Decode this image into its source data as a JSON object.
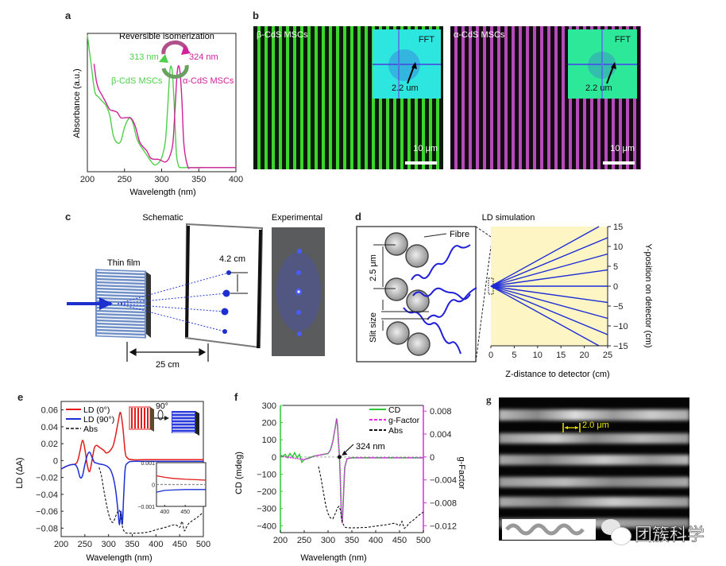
{
  "panels": {
    "a": {
      "label": "a",
      "title": "Reversible isomerization",
      "wl_green": "313 nm",
      "wl_magenta": "324 nm",
      "beta_label": "β-CdS MSCs",
      "alpha_label": "α-CdS MSCs",
      "colors": {
        "beta": "#4fd04a",
        "alpha": "#d0219b"
      }
    },
    "b": {
      "label": "b",
      "left_title": "β-CdS MSCs",
      "right_title": "α-CdS MSCs",
      "fft_label": "FFT",
      "fft_spacing": "2.2 um",
      "scale_bar": "10 μm",
      "colors": {
        "green_stripe": "#37d42c",
        "magenta_stripe": "#b54bb8",
        "fft_bg_left": "#2ee6e0",
        "fft_bg_right": "#2ee89a"
      }
    },
    "c": {
      "label": "c",
      "schematic_title": "Schematic",
      "experimental_title": "Experimental",
      "thin_film": "Thin film",
      "spot_spacing": "4.2 cm",
      "distance": "25 cm"
    },
    "d": {
      "label": "d",
      "title": "LD simulation",
      "fibre_label": "Fibre",
      "period_label": "2.5 μm",
      "slit_label": "Slit size"
    },
    "e": {
      "label": "e"
    },
    "f": {
      "label": "f",
      "annotation": "324 nm"
    },
    "g": {
      "label": "g",
      "scale_label": "2.0 μm"
    }
  },
  "watermark": "团簇科学",
  "chart_data": [
    {
      "id": "a",
      "type": "line",
      "title": "",
      "xlabel": "Wavelength (nm)",
      "ylabel": "Absorbance (a.u.)",
      "xlim": [
        200,
        400
      ],
      "ylim": [
        0,
        1
      ],
      "xticks": [
        200,
        250,
        300,
        350,
        400
      ],
      "series": [
        {
          "name": "β-CdS MSCs",
          "color": "#4fd04a",
          "x": [
            200,
            205,
            210,
            215,
            220,
            225,
            230,
            235,
            240,
            245,
            250,
            255,
            258,
            262,
            266,
            270,
            275,
            280,
            285,
            290,
            295,
            300,
            305,
            308,
            311,
            313,
            315,
            318,
            320,
            323,
            326,
            330,
            340,
            360,
            380,
            400
          ],
          "y": [
            0.99,
            0.78,
            0.58,
            0.54,
            0.51,
            0.48,
            0.41,
            0.26,
            0.21,
            0.22,
            0.32,
            0.38,
            0.39,
            0.34,
            0.25,
            0.2,
            0.16,
            0.12,
            0.08,
            0.05,
            0.06,
            0.1,
            0.22,
            0.45,
            0.72,
            0.76,
            0.68,
            0.35,
            0.12,
            0.04,
            0.03,
            0.03,
            0.03,
            0.03,
            0.03,
            0.03
          ]
        },
        {
          "name": "α-CdS MSCs",
          "color": "#d0219b",
          "x": [
            209,
            212,
            215,
            220,
            225,
            230,
            235,
            240,
            245,
            250,
            255,
            260,
            265,
            270,
            275,
            280,
            285,
            290,
            295,
            300,
            305,
            310,
            315,
            318,
            321,
            324,
            327,
            330,
            335,
            340,
            360,
            380,
            400
          ],
          "y": [
            0.78,
            0.66,
            0.6,
            0.55,
            0.5,
            0.45,
            0.44,
            0.43,
            0.39,
            0.39,
            0.39,
            0.38,
            0.32,
            0.22,
            0.18,
            0.15,
            0.1,
            0.09,
            0.09,
            0.08,
            0.07,
            0.1,
            0.2,
            0.45,
            0.72,
            0.75,
            0.55,
            0.2,
            0.04,
            0.03,
            0.03,
            0.03,
            0.03
          ]
        }
      ]
    },
    {
      "id": "d",
      "type": "line",
      "xlabel": "Z-distance to detector (cm)",
      "ylabel": "Y-position on detector (cm)",
      "xlim": [
        0,
        25
      ],
      "ylim": [
        -15,
        15
      ],
      "xticks": [
        0,
        5,
        10,
        15,
        20,
        25
      ],
      "yticks": [
        15,
        10,
        5,
        0,
        -5,
        -10,
        -15
      ],
      "background": "#fdf6c4",
      "rays_end_y_at_25cm": [
        16.2,
        12.2,
        8.1,
        4.1,
        0,
        -4.1,
        -8.1,
        -12.2,
        -16.2
      ]
    },
    {
      "id": "e",
      "type": "line",
      "xlabel": "Wavelength (nm)",
      "ylabel": "LD (ΔA)",
      "xlim": [
        200,
        500
      ],
      "ylim": [
        -0.09,
        0.07
      ],
      "xticks": [
        200,
        250,
        300,
        350,
        400,
        450,
        500
      ],
      "yticks": [
        0.06,
        0.04,
        0.02,
        0,
        -0.02,
        -0.04,
        -0.06,
        -0.08
      ],
      "legend": [
        "LD (0°)",
        "LD (90°)",
        "Abs"
      ],
      "legend_position": "top-left",
      "rotation_label": "90°",
      "series": [
        {
          "name": "LD (0°)",
          "color": "#e31b1b",
          "x": [
            200,
            210,
            220,
            230,
            235,
            240,
            245,
            250,
            255,
            260,
            265,
            270,
            275,
            280,
            290,
            295,
            300,
            305,
            310,
            315,
            320,
            325,
            330,
            335,
            340,
            350,
            380,
            420,
            460,
            500
          ],
          "y": [
            -0.01,
            -0.007,
            -0.005,
            -0.004,
            0.0,
            0.012,
            0.024,
            0.014,
            -0.005,
            -0.013,
            0.0,
            0.015,
            0.018,
            0.016,
            0.012,
            0.009,
            0.01,
            0.013,
            0.018,
            0.03,
            0.045,
            0.057,
            0.04,
            0.01,
            0.003,
            0.001,
            0.001,
            0.001,
            0.001,
            0.001
          ]
        },
        {
          "name": "LD (90°)",
          "color": "#1b2fd6",
          "x": [
            200,
            210,
            220,
            230,
            235,
            240,
            245,
            250,
            255,
            260,
            265,
            270,
            275,
            280,
            290,
            300,
            305,
            310,
            315,
            320,
            323,
            326,
            329,
            332,
            335,
            340,
            350,
            380,
            420,
            460,
            500
          ],
          "y": [
            -0.01,
            -0.007,
            -0.005,
            -0.005,
            -0.01,
            -0.02,
            -0.018,
            -0.005,
            0.006,
            0.01,
            0.004,
            -0.002,
            -0.003,
            -0.004,
            -0.005,
            -0.008,
            -0.012,
            -0.02,
            -0.035,
            -0.06,
            -0.076,
            -0.06,
            -0.075,
            -0.04,
            -0.01,
            -0.003,
            -0.001,
            -0.001,
            -0.001,
            -0.001,
            -0.001
          ]
        },
        {
          "name": "Abs",
          "color": "#111111",
          "dash": true,
          "x": [
            280,
            285,
            290,
            295,
            300,
            305,
            310,
            315,
            320,
            323,
            326,
            330,
            335,
            340,
            350,
            360,
            380,
            400,
            420,
            440,
            450,
            455,
            460,
            465,
            470,
            480,
            490,
            500
          ],
          "y": [
            -0.008,
            -0.018,
            -0.035,
            -0.05,
            -0.063,
            -0.071,
            -0.073,
            -0.066,
            -0.06,
            -0.059,
            -0.066,
            -0.08,
            -0.085,
            -0.086,
            -0.086,
            -0.086,
            -0.085,
            -0.082,
            -0.079,
            -0.076,
            -0.079,
            -0.072,
            -0.083,
            -0.078,
            -0.074,
            -0.07,
            -0.066,
            -0.061
          ]
        }
      ],
      "inset": {
        "xlim": [
          380,
          500
        ],
        "ylim": [
          -0.001,
          0.001
        ],
        "xticks": [
          400,
          450
        ],
        "yticks": [
          "0.001",
          "0",
          "-0.001"
        ],
        "series": [
          {
            "name": "LD (0°)",
            "x": [
              380,
              400,
              420,
              450,
              480,
              500
            ],
            "y": [
              0.0004,
              0.00033,
              0.00028,
              0.00024,
              0.00022,
              0.0002
            ]
          },
          {
            "name": "LD (90°)",
            "x": [
              380,
              400,
              420,
              450,
              480,
              500
            ],
            "y": [
              -0.00035,
              -0.00027,
              -0.00025,
              -0.00023,
              -0.00023,
              -0.00023
            ]
          },
          {
            "name": "zero",
            "x": [
              380,
              500
            ],
            "y": [
              0,
              0
            ]
          }
        ]
      }
    },
    {
      "id": "f",
      "type": "line",
      "xlabel": "Wavelength (nm)",
      "ylabel": "CD (mdeg)",
      "ylabel_right": "g-Factor",
      "xlim": [
        200,
        500
      ],
      "ylim": [
        -440,
        300
      ],
      "ylim_right": [
        -0.0132,
        0.009
      ],
      "xticks": [
        200,
        250,
        300,
        350,
        400,
        450,
        500
      ],
      "yticks": [
        300,
        200,
        100,
        0,
        -100,
        -200,
        -300,
        -400
      ],
      "yticks_right": [
        "0.008",
        "0.004",
        "0",
        "-0.004",
        "-0.008",
        "-0.012"
      ],
      "legend": [
        "CD",
        "g-Factor",
        "Abs"
      ],
      "legend_position": "top-right",
      "annotation_point": {
        "x": 324,
        "y": 0
      },
      "series": [
        {
          "name": "CD",
          "color": "#2fc83a",
          "x": [
            200,
            205,
            210,
            215,
            220,
            225,
            230,
            235,
            240,
            245,
            250,
            255,
            260,
            270,
            280,
            290,
            300,
            305,
            310,
            315,
            318,
            320,
            322,
            324,
            326,
            328,
            330,
            332,
            335,
            340,
            350,
            400,
            450,
            500
          ],
          "y": [
            10,
            5,
            15,
            -5,
            20,
            0,
            25,
            -5,
            15,
            -30,
            -15,
            -10,
            -5,
            5,
            10,
            15,
            20,
            40,
            90,
            170,
            225,
            180,
            80,
            0,
            -150,
            -350,
            -380,
            -250,
            -60,
            -10,
            -5,
            -5,
            -5,
            -5
          ]
        },
        {
          "name": "g-Factor",
          "color": "#d62ee0",
          "dash": true,
          "x": [
            200,
            250,
            260,
            270,
            280,
            290,
            300,
            305,
            310,
            315,
            318,
            320,
            322,
            324,
            326,
            328,
            330,
            332,
            335,
            340,
            350,
            400,
            450,
            500
          ],
          "y": [
            5,
            -15,
            -8,
            5,
            10,
            15,
            20,
            40,
            90,
            170,
            222,
            180,
            80,
            0,
            -150,
            -350,
            -385,
            -250,
            -60,
            -10,
            -5,
            -5,
            -5,
            -5
          ]
        },
        {
          "name": "Abs",
          "color": "#111111",
          "dash": true,
          "x": [
            280,
            285,
            290,
            295,
            300,
            305,
            310,
            315,
            320,
            323,
            326,
            330,
            335,
            340,
            350,
            360,
            380,
            400,
            420,
            440,
            450,
            455,
            460,
            465,
            470,
            480,
            490,
            500
          ],
          "y": [
            -55,
            -120,
            -200,
            -280,
            -330,
            -355,
            -360,
            -330,
            -295,
            -288,
            -310,
            -380,
            -408,
            -412,
            -412,
            -412,
            -410,
            -402,
            -395,
            -385,
            -400,
            -375,
            -415,
            -405,
            -385,
            -365,
            -340,
            -320
          ]
        }
      ]
    }
  ]
}
